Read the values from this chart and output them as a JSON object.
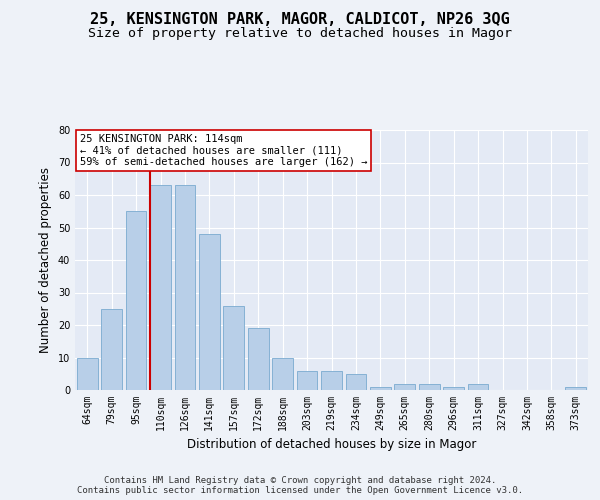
{
  "title": "25, KENSINGTON PARK, MAGOR, CALDICOT, NP26 3QG",
  "subtitle": "Size of property relative to detached houses in Magor",
  "xlabel": "Distribution of detached houses by size in Magor",
  "ylabel": "Number of detached properties",
  "categories": [
    "64sqm",
    "79sqm",
    "95sqm",
    "110sqm",
    "126sqm",
    "141sqm",
    "157sqm",
    "172sqm",
    "188sqm",
    "203sqm",
    "219sqm",
    "234sqm",
    "249sqm",
    "265sqm",
    "280sqm",
    "296sqm",
    "311sqm",
    "327sqm",
    "342sqm",
    "358sqm",
    "373sqm"
  ],
  "values": [
    10,
    25,
    55,
    63,
    63,
    48,
    26,
    19,
    10,
    6,
    6,
    5,
    1,
    2,
    2,
    1,
    2,
    0,
    0,
    0,
    1
  ],
  "bar_color": "#b8cfe8",
  "bar_edge_color": "#7aaad0",
  "vline_color": "#cc0000",
  "vline_x_idx": 3,
  "annotation_text": "25 KENSINGTON PARK: 114sqm\n← 41% of detached houses are smaller (111)\n59% of semi-detached houses are larger (162) →",
  "annotation_box_color": "#ffffff",
  "annotation_box_edge": "#cc0000",
  "ylim": [
    0,
    80
  ],
  "yticks": [
    0,
    10,
    20,
    30,
    40,
    50,
    60,
    70,
    80
  ],
  "footer": "Contains HM Land Registry data © Crown copyright and database right 2024.\nContains public sector information licensed under the Open Government Licence v3.0.",
  "bg_color": "#eef2f8",
  "plot_bg_color": "#e4eaf5",
  "grid_color": "#ffffff",
  "title_fontsize": 11,
  "subtitle_fontsize": 9.5,
  "label_fontsize": 8.5,
  "tick_fontsize": 7,
  "footer_fontsize": 6.5
}
